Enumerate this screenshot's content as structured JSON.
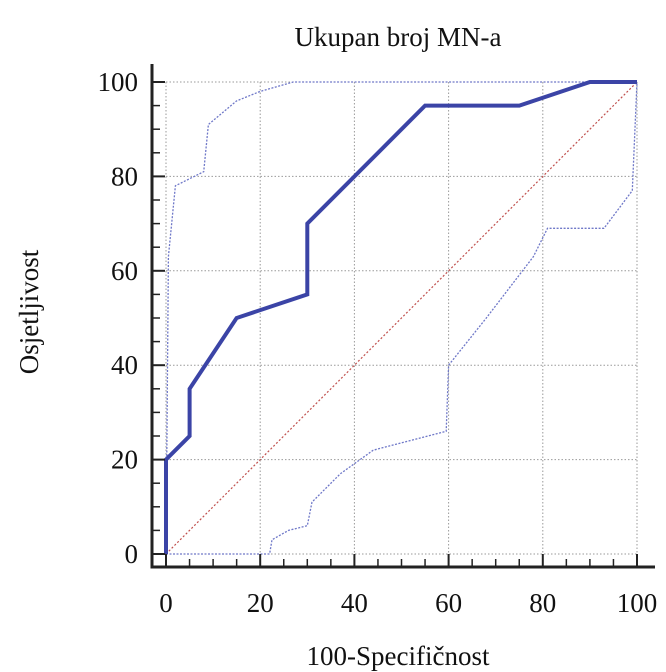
{
  "chart_data": {
    "type": "line",
    "title": "Ukupan broj MN-a",
    "xlabel": "100-Specifičnost",
    "ylabel": "Osjetljivost",
    "xlim": [
      0,
      100
    ],
    "ylim": [
      0,
      100
    ],
    "xticks": [
      0,
      20,
      40,
      60,
      80,
      100
    ],
    "yticks": [
      0,
      20,
      40,
      60,
      80,
      100
    ],
    "grid": true,
    "legend": "none",
    "colors": {
      "roc": "#3b44a6",
      "ci": "#6f78c8",
      "reference": "#c0504d"
    },
    "series": [
      {
        "role": "roc",
        "x": [
          0,
          0,
          5,
          5,
          15,
          30,
          30,
          55,
          75,
          90,
          100
        ],
        "y": [
          0,
          20,
          25,
          35,
          50,
          55,
          70,
          95,
          95,
          100,
          100
        ]
      },
      {
        "role": "ci-upper",
        "x": [
          0,
          0.5,
          2,
          8,
          9,
          15,
          20,
          27,
          100
        ],
        "y": [
          0,
          63,
          78,
          81,
          91,
          96,
          98,
          100,
          100
        ]
      },
      {
        "role": "ci-lower",
        "x": [
          0,
          22,
          22.5,
          26,
          30,
          31,
          37,
          44,
          59.5,
          60,
          68,
          78,
          81,
          93,
          99,
          100
        ],
        "y": [
          0,
          0,
          3,
          5,
          6,
          11,
          17,
          22,
          26,
          40,
          50,
          63,
          69,
          69,
          77,
          100
        ]
      },
      {
        "role": "reference",
        "x": [
          0,
          100
        ],
        "y": [
          0,
          100
        ]
      }
    ]
  }
}
